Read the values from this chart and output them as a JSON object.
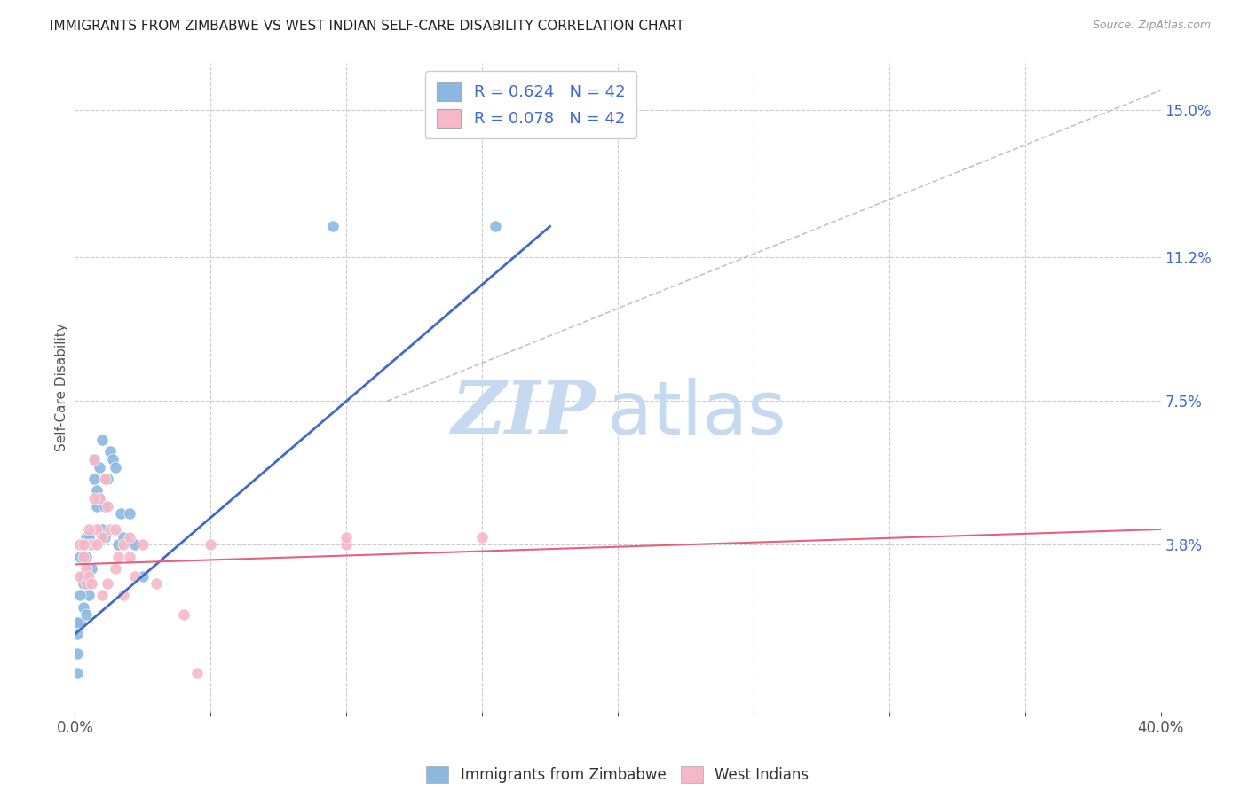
{
  "title": "IMMIGRANTS FROM ZIMBABWE VS WEST INDIAN SELF-CARE DISABILITY CORRELATION CHART",
  "source": "Source: ZipAtlas.com",
  "ylabel": "Self-Care Disability",
  "xlim": [
    0.0,
    0.4
  ],
  "ylim": [
    -0.005,
    0.162
  ],
  "right_ytick_labels": [
    "3.8%",
    "7.5%",
    "11.2%",
    "15.0%"
  ],
  "right_ytick_values": [
    0.038,
    0.075,
    0.112,
    0.15
  ],
  "xtick_positions": [
    0.0,
    0.05,
    0.1,
    0.15,
    0.2,
    0.25,
    0.3,
    0.35,
    0.4
  ],
  "xtick_labels_show": {
    "0": "0.0%",
    "8": "40.0%"
  },
  "grid_color": "#cccccc",
  "background_color": "#ffffff",
  "watermark_zip": "ZIP",
  "watermark_atlas": "atlas",
  "watermark_color_zip": "#c5daf0",
  "watermark_color_atlas": "#c5daf0",
  "blue_color": "#8ab8e0",
  "pink_color": "#f5b8c8",
  "blue_line_color": "#4169c8",
  "pink_line_color": "#e8607a",
  "legend_blue_label": "R = 0.624   N = 42",
  "legend_pink_label": "R = 0.078   N = 42",
  "legend_label_blue": "Immigrants from Zimbabwe",
  "legend_label_pink": "West Indians",
  "blue_scatter_x": [
    0.007,
    0.007,
    0.008,
    0.008,
    0.009,
    0.009,
    0.01,
    0.01,
    0.011,
    0.011,
    0.012,
    0.013,
    0.014,
    0.015,
    0.016,
    0.017,
    0.018,
    0.02,
    0.022,
    0.025,
    0.003,
    0.003,
    0.004,
    0.004,
    0.005,
    0.005,
    0.005,
    0.006,
    0.006,
    0.002,
    0.002,
    0.002,
    0.002,
    0.003,
    0.003,
    0.004,
    0.001,
    0.001,
    0.001,
    0.001,
    0.095,
    0.155
  ],
  "blue_scatter_y": [
    0.06,
    0.055,
    0.052,
    0.048,
    0.058,
    0.05,
    0.065,
    0.042,
    0.048,
    0.04,
    0.055,
    0.062,
    0.06,
    0.058,
    0.038,
    0.046,
    0.04,
    0.046,
    0.038,
    0.03,
    0.035,
    0.03,
    0.04,
    0.035,
    0.04,
    0.038,
    0.025,
    0.038,
    0.032,
    0.038,
    0.035,
    0.025,
    0.018,
    0.028,
    0.022,
    0.02,
    0.018,
    0.015,
    0.01,
    0.005,
    0.12,
    0.12
  ],
  "pink_scatter_x": [
    0.007,
    0.008,
    0.009,
    0.01,
    0.011,
    0.012,
    0.013,
    0.015,
    0.016,
    0.018,
    0.02,
    0.022,
    0.003,
    0.004,
    0.005,
    0.006,
    0.007,
    0.008,
    0.002,
    0.002,
    0.003,
    0.003,
    0.004,
    0.005,
    0.006,
    0.1,
    0.1,
    0.15,
    0.01,
    0.012,
    0.015,
    0.018,
    0.02,
    0.025,
    0.03,
    0.04,
    0.002,
    0.003,
    0.045,
    0.05,
    0.002,
    0.003
  ],
  "pink_scatter_y": [
    0.06,
    0.042,
    0.05,
    0.04,
    0.055,
    0.048,
    0.042,
    0.042,
    0.035,
    0.038,
    0.04,
    0.03,
    0.038,
    0.032,
    0.042,
    0.038,
    0.05,
    0.038,
    0.038,
    0.03,
    0.035,
    0.038,
    0.028,
    0.03,
    0.028,
    0.038,
    0.04,
    0.04,
    0.025,
    0.028,
    0.032,
    0.025,
    0.035,
    0.038,
    0.028,
    0.02,
    0.038,
    0.038,
    0.005,
    0.038,
    0.038,
    0.038
  ],
  "blue_regline_x": [
    0.0,
    0.175
  ],
  "blue_regline_y": [
    0.015,
    0.12
  ],
  "pink_regline_x": [
    0.0,
    0.4
  ],
  "pink_regline_y": [
    0.033,
    0.042
  ],
  "ref_line_x": [
    0.115,
    0.4
  ],
  "ref_line_y": [
    0.075,
    0.155
  ]
}
